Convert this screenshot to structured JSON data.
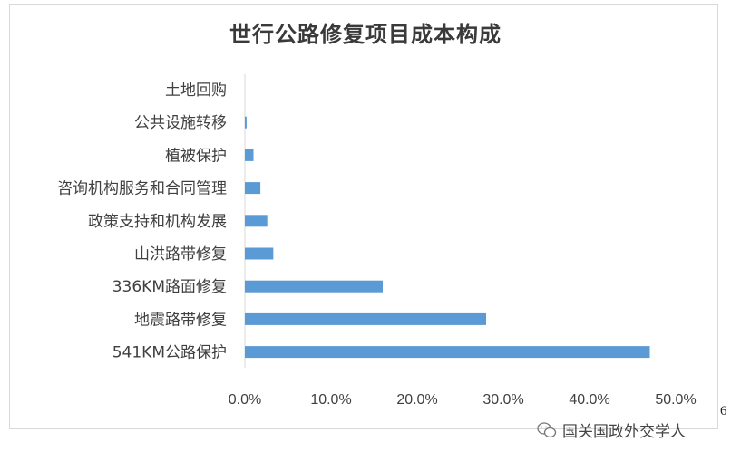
{
  "chart_data": {
    "type": "bar",
    "orientation": "horizontal",
    "title": "世行公路修复项目成本构成",
    "categories": [
      "土地回购",
      "公共设施转移",
      "植被保护",
      "咨询机构服务和合同管理",
      "政策支持和机构发展",
      "山洪路带修复",
      "336KM路面修复",
      "地震路带修复",
      "541KM公路保护"
    ],
    "values": [
      0.0,
      0.2,
      1.0,
      1.8,
      2.6,
      3.3,
      16.0,
      28.0,
      47.0
    ],
    "xlim": [
      0,
      50
    ],
    "x_ticks": [
      "0.0%",
      "10.0%",
      "20.0%",
      "30.0%",
      "40.0%",
      "50.0%"
    ],
    "grid": false,
    "bar_color": "#5b9bd5",
    "xlabel": "",
    "ylabel": ""
  },
  "watermark": {
    "text": "国关国政外交学人",
    "icon": "wechat-icon"
  },
  "page_number": "6"
}
